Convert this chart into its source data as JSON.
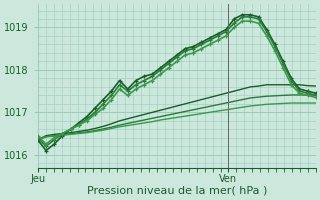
{
  "xlabel": "Pression niveau de la mer( hPa )",
  "background_color": "#cce8dd",
  "grid_color": "#99ccbb",
  "ylim": [
    1015.7,
    1019.55
  ],
  "xlim": [
    0,
    35
  ],
  "ven_x": 24,
  "series": [
    [
      1016.35,
      1016.1,
      1016.25,
      1016.45,
      1016.6,
      1016.75,
      1016.9,
      1017.1,
      1017.3,
      1017.5,
      1017.75,
      1017.55,
      1017.75,
      1017.85,
      1017.9,
      1018.05,
      1018.2,
      1018.35,
      1018.5,
      1018.55,
      1018.65,
      1018.75,
      1018.85,
      1018.95,
      1019.2,
      1019.3,
      1019.3,
      1019.25,
      1018.95,
      1018.6,
      1018.2,
      1017.8,
      1017.55,
      1017.5,
      1017.45
    ],
    [
      1016.4,
      1016.2,
      1016.35,
      1016.5,
      1016.6,
      1016.7,
      1016.85,
      1017.0,
      1017.2,
      1017.4,
      1017.65,
      1017.5,
      1017.65,
      1017.75,
      1017.85,
      1018.0,
      1018.15,
      1018.3,
      1018.45,
      1018.5,
      1018.6,
      1018.7,
      1018.8,
      1018.9,
      1019.1,
      1019.25,
      1019.25,
      1019.2,
      1018.9,
      1018.55,
      1018.15,
      1017.75,
      1017.5,
      1017.45,
      1017.4
    ],
    [
      1016.45,
      1016.25,
      1016.4,
      1016.5,
      1016.6,
      1016.7,
      1016.8,
      1016.95,
      1017.1,
      1017.3,
      1017.55,
      1017.4,
      1017.55,
      1017.65,
      1017.75,
      1017.9,
      1018.05,
      1018.2,
      1018.35,
      1018.4,
      1018.5,
      1018.6,
      1018.7,
      1018.8,
      1019.0,
      1019.15,
      1019.15,
      1019.1,
      1018.8,
      1018.45,
      1018.05,
      1017.65,
      1017.45,
      1017.4,
      1017.35
    ],
    [
      1016.35,
      1016.45,
      1016.48,
      1016.5,
      1016.52,
      1016.55,
      1016.58,
      1016.62,
      1016.67,
      1016.73,
      1016.8,
      1016.85,
      1016.9,
      1016.95,
      1017.0,
      1017.05,
      1017.1,
      1017.15,
      1017.2,
      1017.25,
      1017.3,
      1017.35,
      1017.4,
      1017.45,
      1017.5,
      1017.55,
      1017.6,
      1017.62,
      1017.65,
      1017.65,
      1017.65,
      1017.65,
      1017.65,
      1017.63,
      1017.62
    ],
    [
      1016.35,
      1016.43,
      1016.45,
      1016.47,
      1016.49,
      1016.52,
      1016.54,
      1016.57,
      1016.61,
      1016.65,
      1016.7,
      1016.74,
      1016.78,
      1016.82,
      1016.86,
      1016.9,
      1016.94,
      1016.98,
      1017.02,
      1017.06,
      1017.1,
      1017.14,
      1017.18,
      1017.22,
      1017.26,
      1017.3,
      1017.34,
      1017.36,
      1017.38,
      1017.39,
      1017.4,
      1017.41,
      1017.41,
      1017.41,
      1017.41
    ],
    [
      1016.35,
      1016.42,
      1016.44,
      1016.46,
      1016.48,
      1016.5,
      1016.52,
      1016.55,
      1016.58,
      1016.62,
      1016.66,
      1016.69,
      1016.72,
      1016.75,
      1016.78,
      1016.82,
      1016.85,
      1016.88,
      1016.91,
      1016.94,
      1016.97,
      1017.0,
      1017.03,
      1017.06,
      1017.09,
      1017.12,
      1017.15,
      1017.17,
      1017.19,
      1017.2,
      1017.21,
      1017.22,
      1017.22,
      1017.22,
      1017.22
    ]
  ],
  "has_markers": [
    true,
    true,
    true,
    false,
    false,
    false
  ],
  "colors": [
    "#1a5c2a",
    "#2d7a3a",
    "#3a9a4a",
    "#1a5c2a",
    "#2d7a3a",
    "#3a9a4a"
  ],
  "linewidths": [
    1.2,
    1.2,
    1.2,
    1.0,
    1.0,
    1.0
  ]
}
